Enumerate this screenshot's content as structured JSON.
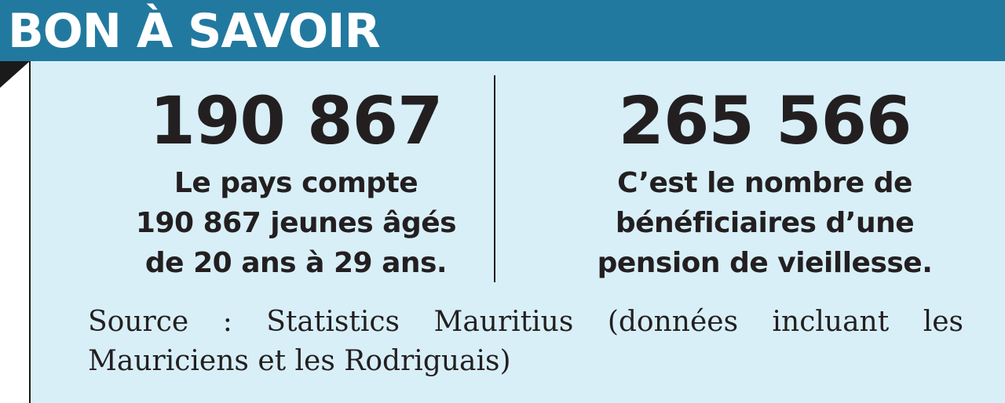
{
  "header": {
    "title": "BON À SAVOIR"
  },
  "stats": {
    "left": {
      "number": "190 867",
      "lines": [
        "Le pays compte",
        "190 867 jeunes âgés",
        "de 20 ans à 29 ans."
      ]
    },
    "right": {
      "number": "265 566",
      "lines": [
        "C’est le nombre de",
        "bénéficiaires d’une",
        "pension de vieillesse."
      ]
    }
  },
  "source": "Source : Statistics Mauritius (données incluant les Mauriciens et les Rodriguais)",
  "colors": {
    "header_bg": "#22799f",
    "box_bg": "#d8eff8",
    "text": "#231f20"
  }
}
